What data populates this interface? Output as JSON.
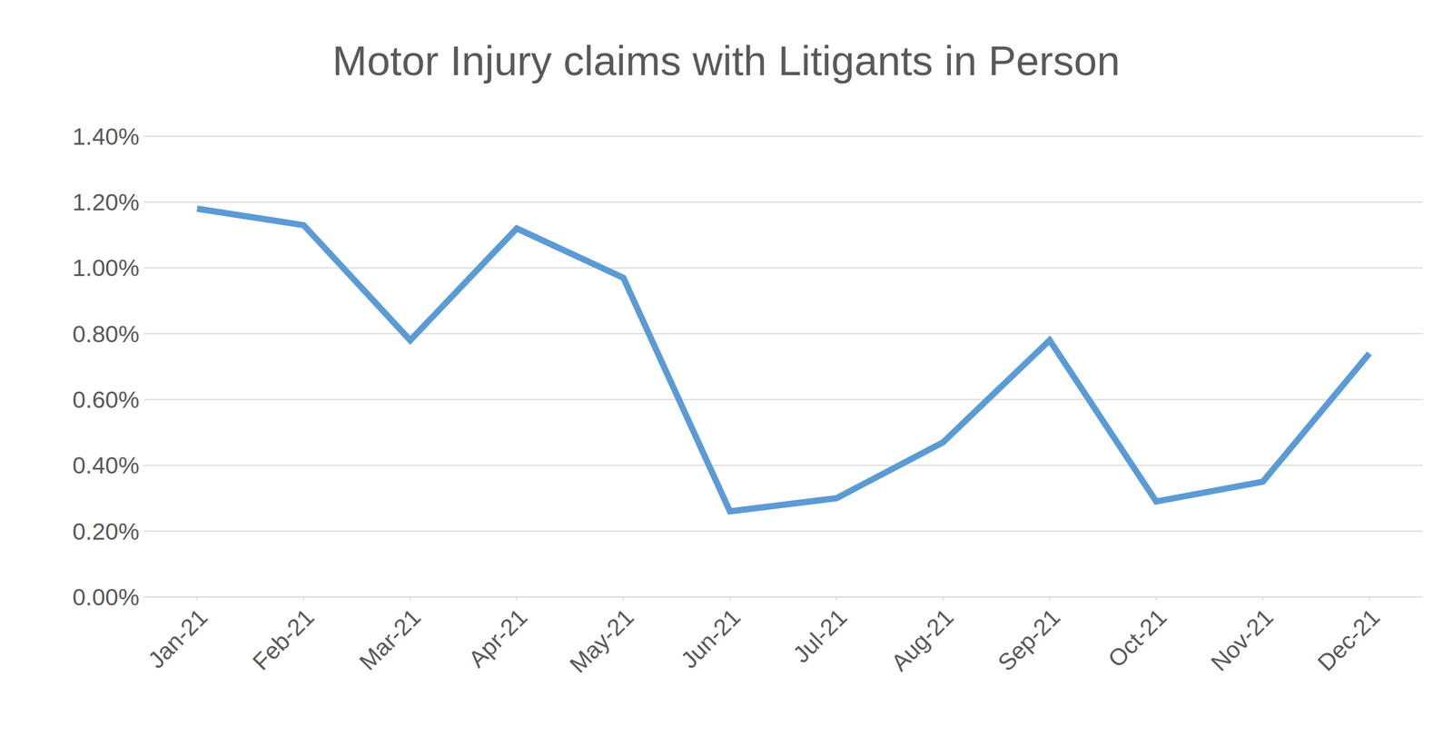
{
  "chart_data": {
    "type": "line",
    "title": "Motor Injury claims with Litigants in Person",
    "categories": [
      "Jan-21",
      "Feb-21",
      "Mar-21",
      "Apr-21",
      "May-21",
      "Jun-21",
      "Jul-21",
      "Aug-21",
      "Sep-21",
      "Oct-21",
      "Nov-21",
      "Dec-21"
    ],
    "values": [
      1.18,
      1.13,
      0.78,
      1.12,
      0.97,
      0.26,
      0.3,
      0.47,
      0.78,
      0.29,
      0.35,
      0.74
    ],
    "color": "#5b9bd5",
    "ylim": [
      0,
      1.4
    ],
    "yticks": [
      {
        "value": 0,
        "label": "0.00%"
      },
      {
        "value": 0.2,
        "label": "0.20%"
      },
      {
        "value": 0.4,
        "label": "0.40%"
      },
      {
        "value": 0.6,
        "label": "0.60%"
      },
      {
        "value": 0.8,
        "label": "0.80%"
      },
      {
        "value": 1,
        "label": "1.00%"
      },
      {
        "value": 1.2,
        "label": "1.20%"
      },
      {
        "value": 1.4,
        "label": "1.40%"
      }
    ],
    "grid": true
  }
}
